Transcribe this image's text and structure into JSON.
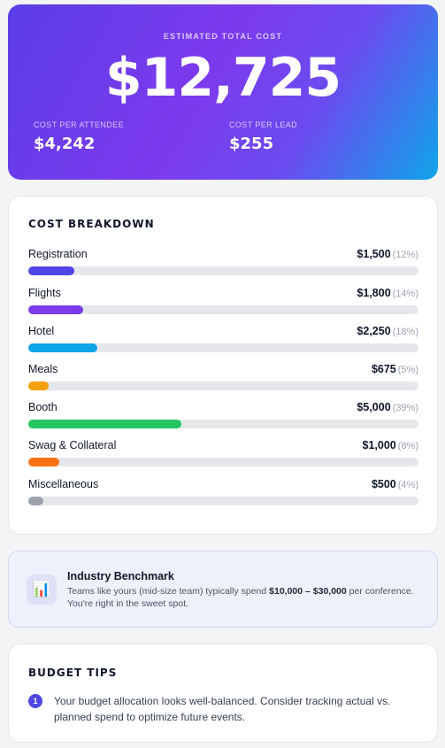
{
  "summary": {
    "label": "ESTIMATED TOTAL COST",
    "total": "$12,725",
    "per_attendee_label": "COST PER ATTENDEE",
    "per_attendee_value": "$4,242",
    "per_lead_label": "COST PER LEAD",
    "per_lead_value": "$255"
  },
  "breakdown": {
    "title": "COST BREAKDOWN",
    "items": [
      {
        "name": "Registration",
        "amount": "$1,500",
        "percent_label": "(12%)",
        "share": 0.118,
        "color": "#4f46e5"
      },
      {
        "name": "Flights",
        "amount": "$1,800",
        "percent_label": "(14%)",
        "share": 0.141,
        "color": "#7c3aed"
      },
      {
        "name": "Hotel",
        "amount": "$2,250",
        "percent_label": "(18%)",
        "share": 0.177,
        "color": "#0ea5e9"
      },
      {
        "name": "Meals",
        "amount": "$675",
        "percent_label": "(5%)",
        "share": 0.053,
        "color": "#f59e0b"
      },
      {
        "name": "Booth",
        "amount": "$5,000",
        "percent_label": "(39%)",
        "share": 0.393,
        "color": "#22c55e"
      },
      {
        "name": "Swag & Collateral",
        "amount": "$1,000",
        "percent_label": "(8%)",
        "share": 0.079,
        "color": "#f97316"
      },
      {
        "name": "Miscellaneous",
        "amount": "$500",
        "percent_label": "(4%)",
        "share": 0.039,
        "color": "#9ca3af"
      }
    ]
  },
  "benchmark": {
    "icon": "bar-chart-icon",
    "title": "Industry Benchmark",
    "text_before": "Teams like yours (mid-size team) typically spend ",
    "range": "$10,000 – $30,000",
    "text_after": " per conference. You're right in the sweet spot."
  },
  "tips": {
    "title": "BUDGET TIPS",
    "items": [
      {
        "number": "1",
        "text": "Your budget allocation looks well-balanced. Consider tracking actual vs. planned spend to optimize future events."
      }
    ]
  }
}
